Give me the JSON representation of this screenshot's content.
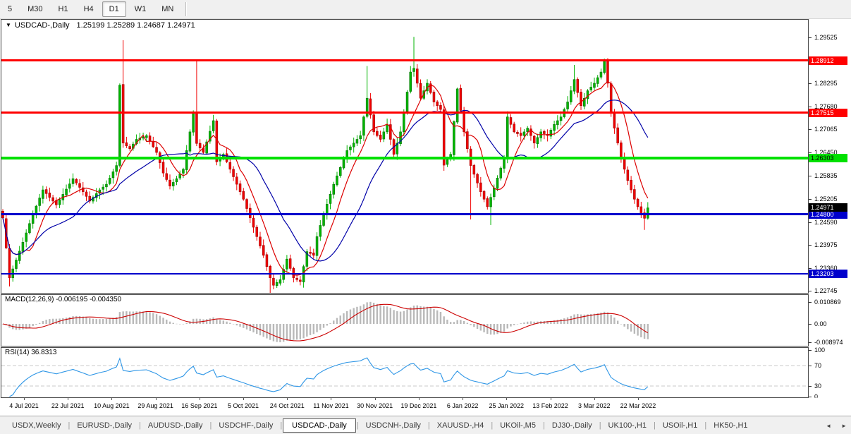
{
  "toolbar": {
    "timeframes": [
      "5",
      "M30",
      "H1",
      "H4",
      "D1",
      "W1",
      "MN"
    ],
    "active": "D1"
  },
  "chart": {
    "title": "USDCAD-,Daily",
    "ohlc": "1.25199 1.25289 1.24687 1.24971"
  },
  "macd": {
    "label": "MACD(12,26,9)",
    "values": "-0.006195 -0.004350"
  },
  "rsi": {
    "label": "RSI(14)",
    "value": "36.8313"
  },
  "icons": {
    "dropdown": "▼",
    "scroll_left": "◄",
    "scroll_right": "►"
  },
  "tabs": {
    "separator": "|",
    "active": "USDCAD-,Daily",
    "items": [
      "USDX,Weekly",
      "EURUSD-,Daily",
      "AUDUSD-,Daily",
      "USDCHF-,Daily",
      "USDCAD-,Daily",
      "USDCNH-,Daily",
      "XAUUSD-,H4",
      "UKOil-,M5",
      "DJ30-,Daily",
      "UK100-,H1",
      "USOil-,H1",
      "HK50-,H1"
    ]
  },
  "chart_data": [
    {
      "id": "price",
      "type": "candlestick",
      "symbol": "USDCAD",
      "timeframe": "Daily",
      "n_bars": 194,
      "first_x": 2,
      "bar_spacing": 4.74,
      "ylim": [
        1.22697,
        1.29959
      ],
      "bull_color": "#00B400",
      "bull_stroke": "#006400",
      "bear_color": "#F00000",
      "bear_stroke": "#900000",
      "close_keyframes": [
        [
          0,
          1.247
        ],
        [
          2,
          1.231
        ],
        [
          6,
          1.2405
        ],
        [
          9,
          1.248
        ],
        [
          12,
          1.2545
        ],
        [
          16,
          1.2505
        ],
        [
          21,
          1.2575
        ],
        [
          24,
          1.254
        ],
        [
          26,
          1.2515
        ],
        [
          29,
          1.2545
        ],
        [
          31,
          1.256
        ],
        [
          34,
          1.261
        ],
        [
          35,
          1.2825
        ],
        [
          36,
          1.267
        ],
        [
          38,
          1.2655
        ],
        [
          40,
          1.268
        ],
        [
          43,
          1.269
        ],
        [
          46,
          1.2645
        ],
        [
          48,
          1.259
        ],
        [
          50,
          1.2555
        ],
        [
          52,
          1.2575
        ],
        [
          54,
          1.26
        ],
        [
          56,
          1.27
        ],
        [
          57,
          1.275
        ],
        [
          58,
          1.2669
        ],
        [
          60,
          1.2645
        ],
        [
          63,
          1.273
        ],
        [
          64,
          1.262
        ],
        [
          66,
          1.264
        ],
        [
          68,
          1.26
        ],
        [
          70,
          1.256
        ],
        [
          72,
          1.252
        ],
        [
          74,
          1.247
        ],
        [
          76,
          1.242
        ],
        [
          78,
          1.237
        ],
        [
          80,
          1.231
        ],
        [
          81,
          1.229
        ],
        [
          83,
          1.2305
        ],
        [
          85,
          1.236
        ],
        [
          87,
          1.231
        ],
        [
          89,
          1.23
        ],
        [
          91,
          1.238
        ],
        [
          93,
          1.237
        ],
        [
          94,
          1.242
        ],
        [
          96,
          1.248
        ],
        [
          99,
          1.256
        ],
        [
          103,
          1.265
        ],
        [
          107,
          1.269
        ],
        [
          109,
          1.279
        ],
        [
          111,
          1.27
        ],
        [
          113,
          1.268
        ],
        [
          115,
          1.272
        ],
        [
          117,
          1.264
        ],
        [
          119,
          1.27
        ],
        [
          122,
          1.286
        ],
        [
          123,
          1.287
        ],
        [
          125,
          1.279
        ],
        [
          127,
          1.283
        ],
        [
          129,
          1.278
        ],
        [
          131,
          1.276
        ],
        [
          132,
          1.2611
        ],
        [
          134,
          1.264
        ],
        [
          136,
          1.2815
        ],
        [
          138,
          1.27
        ],
        [
          140,
          1.261
        ],
        [
          143,
          1.254
        ],
        [
          145,
          1.25
        ],
        [
          147,
          1.255
        ],
        [
          150,
          1.263
        ],
        [
          151,
          1.274
        ],
        [
          153,
          1.27
        ],
        [
          155,
          1.269
        ],
        [
          157,
          1.271
        ],
        [
          159,
          1.267
        ],
        [
          161,
          1.27
        ],
        [
          163,
          1.269
        ],
        [
          165,
          1.272
        ],
        [
          167,
          1.274
        ],
        [
          169,
          1.278
        ],
        [
          171,
          1.284
        ],
        [
          173,
          1.277
        ],
        [
          175,
          1.281
        ],
        [
          177,
          1.283
        ],
        [
          179,
          1.286
        ],
        [
          180,
          1.289
        ],
        [
          181,
          1.283
        ],
        [
          182,
          1.275
        ],
        [
          183,
          1.271
        ],
        [
          184,
          1.267
        ],
        [
          185,
          1.263
        ],
        [
          186,
          1.26
        ],
        [
          187,
          1.257
        ],
        [
          188,
          1.2545
        ],
        [
          189,
          1.252
        ],
        [
          190,
          1.25
        ],
        [
          191,
          1.2482
        ],
        [
          192,
          1.2469
        ],
        [
          193,
          1.2497
        ]
      ],
      "spikes": [
        {
          "i": 2,
          "low": 1.2287
        },
        {
          "i": 36,
          "high": 1.2945
        },
        {
          "i": 58,
          "high": 1.2891
        },
        {
          "i": 80,
          "low": 1.2256
        },
        {
          "i": 109,
          "high": 1.2876
        },
        {
          "i": 123,
          "high": 1.2954
        },
        {
          "i": 140,
          "low": 1.2466
        },
        {
          "i": 146,
          "low": 1.2451
        },
        {
          "i": 171,
          "high": 1.2879
        },
        {
          "i": 180,
          "high": 1.2896
        },
        {
          "i": 192,
          "low": 1.2438
        }
      ],
      "moving_averages": [
        {
          "name": "ma-fast",
          "period": 8,
          "color": "#DC0000"
        },
        {
          "name": "ma-slow",
          "period": 21,
          "color": "#0000A8"
        }
      ],
      "hlines": [
        {
          "price": 1.28912,
          "label": "1.28912",
          "color": "#FF0000",
          "fg": "#FFFFFF",
          "w": 3
        },
        {
          "price": 1.27515,
          "label": "1.27515",
          "color": "#FF0000",
          "fg": "#FFFFFF",
          "w": 3
        },
        {
          "price": 1.26303,
          "label": "1.26303",
          "color": "#00E100",
          "fg": "#000000",
          "w": 4
        },
        {
          "price": 1.248,
          "label": "1.24800",
          "color": "#0000CC",
          "fg": "#FFFFFF",
          "w": 3
        },
        {
          "price": 1.23203,
          "label": "1.23203",
          "color": "#0000CC",
          "fg": "#FFFFFF",
          "w": 2
        }
      ],
      "current_price": {
        "price": 1.24971,
        "label": "1.24971",
        "bg": "#000000",
        "fg": "#FFFFFF"
      },
      "y_ticks": [
        "1.29525",
        "1.28295",
        "1.27680",
        "1.27065",
        "1.26450",
        "1.25835",
        "1.25205",
        "1.24590",
        "1.23975",
        "1.23360",
        "1.22745"
      ],
      "x_labels": [
        "4 Jul 2021",
        "22 Jul 2021",
        "10 Aug 2021",
        "29 Aug 2021",
        "16 Sep 2021",
        "5 Oct 2021",
        "24 Oct 2021",
        "11 Nov 2021",
        "30 Nov 2021",
        "19 Dec 2021",
        "6 Jan 2022",
        "25 Jan 2022",
        "13 Feb 2022",
        "3 Mar 2022",
        "22 Mar 2022"
      ]
    },
    {
      "id": "macd",
      "type": "bar+line",
      "label": "MACD(12,26,9)",
      "fast": 12,
      "slow": 26,
      "signal": 9,
      "value_main": "-0.006195",
      "value_signal": "-0.004350",
      "max": 0.010869,
      "min": -0.008974,
      "y_ticks": [
        "0.010869",
        "0.00",
        "-0.008974"
      ],
      "bar_color": "#B9B9B9",
      "signal_color": "#CC0000"
    },
    {
      "id": "rsi",
      "type": "line",
      "label": "RSI(14)",
      "period": 14,
      "value": "36.8313",
      "levels": [
        70,
        30
      ],
      "y_ticks": [
        "100",
        "70",
        "30",
        "0"
      ],
      "range": [
        0,
        100
      ],
      "color": "#2E96E6",
      "level_color": "#C8C8C8"
    }
  ]
}
